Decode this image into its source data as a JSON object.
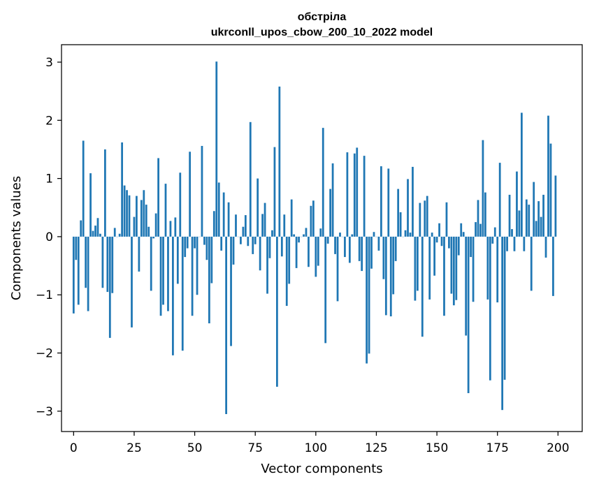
{
  "chart_data": {
    "type": "bar",
    "title": "обстріла",
    "subtitle": "ukrconll_upos_cbow_200_10_2022 model",
    "xlabel": "Vector components",
    "ylabel": "Components values",
    "xlim": [
      -5,
      210
    ],
    "ylim": [
      -3.35,
      3.3
    ],
    "xticks": [
      0,
      25,
      50,
      75,
      100,
      125,
      150,
      175,
      200
    ],
    "yticks": [
      3,
      2,
      1,
      0,
      -1,
      -2,
      -3
    ],
    "ytick_labels": [
      "3",
      "2",
      "1",
      "0",
      "−1",
      "−2",
      "−3"
    ],
    "bar_color": "#1f77b4",
    "x": [
      0,
      1,
      2,
      3,
      4,
      5,
      6,
      7,
      8,
      9,
      10,
      11,
      12,
      13,
      14,
      15,
      16,
      17,
      18,
      19,
      20,
      21,
      22,
      23,
      24,
      25,
      26,
      27,
      28,
      29,
      30,
      31,
      32,
      33,
      34,
      35,
      36,
      37,
      38,
      39,
      40,
      41,
      42,
      43,
      44,
      45,
      46,
      47,
      48,
      49,
      50,
      51,
      52,
      53,
      54,
      55,
      56,
      57,
      58,
      59,
      60,
      61,
      62,
      63,
      64,
      65,
      66,
      67,
      68,
      69,
      70,
      71,
      72,
      73,
      74,
      75,
      76,
      77,
      78,
      79,
      80,
      81,
      82,
      83,
      84,
      85,
      86,
      87,
      88,
      89,
      90,
      91,
      92,
      93,
      94,
      95,
      96,
      97,
      98,
      99,
      100,
      101,
      102,
      103,
      104,
      105,
      106,
      107,
      108,
      109,
      110,
      111,
      112,
      113,
      114,
      115,
      116,
      117,
      118,
      119,
      120,
      121,
      122,
      123,
      124,
      125,
      126,
      127,
      128,
      129,
      130,
      131,
      132,
      133,
      134,
      135,
      136,
      137,
      138,
      139,
      140,
      141,
      142,
      143,
      144,
      145,
      146,
      147,
      148,
      149,
      150,
      151,
      152,
      153,
      154,
      155,
      156,
      157,
      158,
      159,
      160,
      161,
      162,
      163,
      164,
      165,
      166,
      167,
      168,
      169,
      170,
      171,
      172,
      173,
      174,
      175,
      176,
      177,
      178,
      179,
      180,
      181,
      182,
      183,
      184,
      185,
      186,
      187,
      188,
      189,
      190,
      191,
      192,
      193,
      194,
      195,
      196,
      197,
      198,
      199
    ],
    "values": [
      -1.32,
      -0.4,
      -1.17,
      0.28,
      1.65,
      -0.88,
      -1.28,
      1.09,
      0.1,
      0.19,
      0.32,
      0.05,
      -0.88,
      1.5,
      -0.95,
      -1.74,
      -0.97,
      0.15,
      0.0,
      0.05,
      1.62,
      0.88,
      0.8,
      0.71,
      -1.56,
      0.34,
      0.7,
      -0.6,
      0.63,
      0.8,
      0.55,
      0.17,
      -0.93,
      -0.03,
      0.4,
      1.35,
      -1.36,
      -1.17,
      0.91,
      -1.28,
      0.27,
      -2.04,
      0.33,
      -0.81,
      1.1,
      -1.96,
      -0.35,
      -0.2,
      1.46,
      -1.36,
      -0.2,
      -1.0,
      0.0,
      1.56,
      -0.14,
      -0.4,
      -1.49,
      -0.8,
      0.44,
      3.01,
      0.93,
      -0.24,
      0.76,
      -3.05,
      0.59,
      -1.88,
      -0.48,
      0.38,
      0.0,
      -0.13,
      0.17,
      0.37,
      -0.16,
      1.97,
      -0.3,
      -0.13,
      1.0,
      -0.58,
      0.39,
      0.58,
      -0.98,
      -0.37,
      0.11,
      1.54,
      -2.58,
      2.58,
      -0.34,
      0.38,
      -1.19,
      -0.81,
      0.64,
      0.04,
      -0.54,
      -0.1,
      0.0,
      0.04,
      0.15,
      -0.52,
      0.53,
      0.62,
      -0.69,
      -0.5,
      0.14,
      1.87,
      -1.83,
      -0.12,
      0.82,
      1.26,
      -0.3,
      -1.11,
      0.07,
      0.0,
      -0.35,
      1.45,
      -0.45,
      0.04,
      1.43,
      1.53,
      -0.42,
      -0.59,
      1.39,
      -2.18,
      -2.01,
      -0.55,
      0.08,
      0.0,
      -0.24,
      1.21,
      -0.73,
      -1.35,
      1.17,
      -1.37,
      -0.99,
      -0.42,
      0.82,
      0.42,
      0.0,
      0.11,
      0.99,
      0.07,
      1.2,
      -1.1,
      -0.93,
      0.58,
      -1.72,
      0.62,
      0.7,
      -1.08,
      0.07,
      -0.67,
      -0.1,
      0.23,
      -0.16,
      -1.36,
      0.59,
      -0.2,
      -0.98,
      -1.18,
      -1.09,
      -0.32,
      0.23,
      0.08,
      -1.7,
      -2.69,
      -0.35,
      -1.12,
      0.25,
      0.63,
      0.22,
      1.66,
      0.76,
      -1.08,
      -2.47,
      -0.12,
      0.16,
      -1.13,
      1.27,
      -2.98,
      -2.46,
      -0.25,
      0.72,
      0.13,
      -0.25,
      1.12,
      0.45,
      2.13,
      -0.25,
      0.64,
      0.55,
      -0.93,
      0.94,
      0.27,
      0.61,
      0.34,
      0.72,
      -0.36,
      2.08,
      1.6,
      -1.02,
      1.05
    ]
  }
}
